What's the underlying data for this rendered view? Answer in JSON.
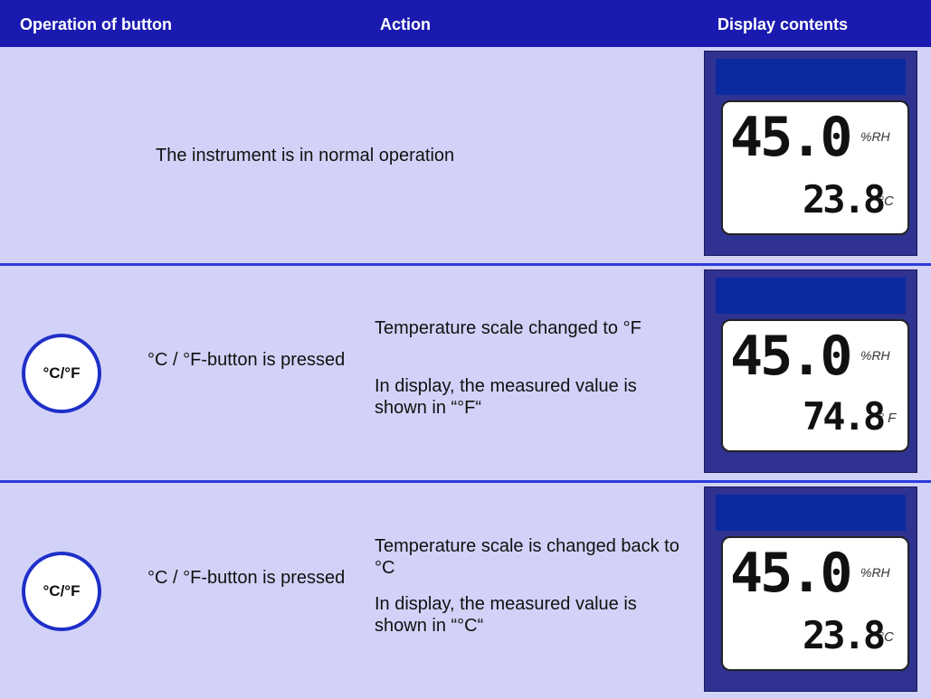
{
  "header": {
    "columns": [
      "Operation of button",
      "Action",
      "Display contents"
    ]
  },
  "rows": [
    {
      "action": [
        "The instrument is in normal operation"
      ],
      "display": {
        "humidity": "45.0",
        "humidity_unit": "%RH",
        "temperature": "23.8",
        "temperature_unit": "°C"
      }
    },
    {
      "button": "°C/°F",
      "operation": "°C / °F-button is pressed",
      "action": [
        "Temperature scale changed to °F",
        "In display, the measured value is shown in “°F“"
      ],
      "display": {
        "humidity": "45.0",
        "humidity_unit": "%RH",
        "temperature": "74.8",
        "temperature_unit": "° F"
      }
    },
    {
      "button": "°C/°F",
      "operation": "°C / °F-button is pressed",
      "action": [
        "Temperature scale is changed back to °C",
        "In display, the measured value is shown in “°C“"
      ],
      "display": {
        "humidity": "45.0",
        "humidity_unit": "%RH",
        "temperature": "23.8",
        "temperature_unit": "°C"
      }
    }
  ]
}
